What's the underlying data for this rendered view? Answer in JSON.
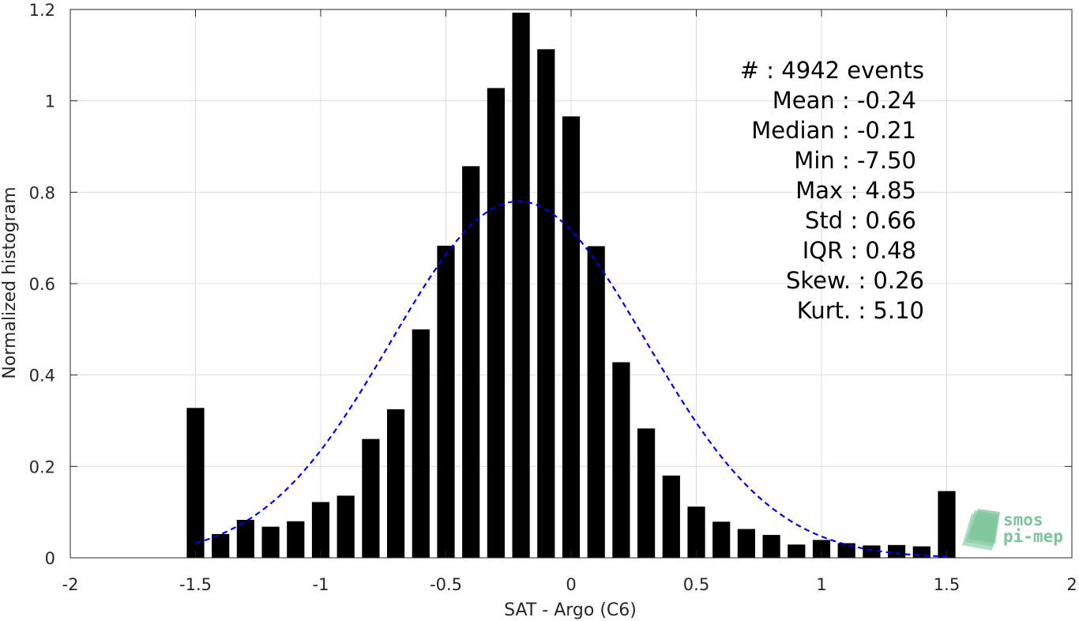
{
  "chart_data": {
    "type": "bar",
    "xlabel": "SAT - Argo (C6)",
    "ylabel": "Normalized histogram",
    "xlim": [
      -2,
      2
    ],
    "ylim": [
      0,
      1.2
    ],
    "xticks": [
      -2,
      -1.5,
      -1,
      -0.5,
      0,
      0.5,
      1,
      1.5,
      2
    ],
    "xtick_labels": [
      "-2",
      "-1.5",
      "-1",
      "-0.5",
      "0",
      "0.5",
      "1",
      "1.5",
      "2"
    ],
    "yticks": [
      0,
      0.2,
      0.4,
      0.6,
      0.8,
      1,
      1.2
    ],
    "ytick_labels": [
      "0",
      "0.2",
      "0.4",
      "0.6",
      "0.8",
      "1",
      "1.2"
    ],
    "grid": true,
    "bar_color": "#000000",
    "bar_width": 0.07,
    "x": [
      -1.5,
      -1.4,
      -1.3,
      -1.2,
      -1.1,
      -1.0,
      -0.9,
      -0.8,
      -0.7,
      -0.6,
      -0.5,
      -0.4,
      -0.3,
      -0.2,
      -0.1,
      0.0,
      0.1,
      0.2,
      0.3,
      0.4,
      0.5,
      0.6,
      0.7,
      0.8,
      0.9,
      1.0,
      1.1,
      1.2,
      1.3,
      1.4,
      1.5
    ],
    "values": [
      0.328,
      0.052,
      0.083,
      0.068,
      0.08,
      0.122,
      0.136,
      0.26,
      0.325,
      0.5,
      0.683,
      0.857,
      1.028,
      1.193,
      1.113,
      0.966,
      0.682,
      0.428,
      0.283,
      0.18,
      0.112,
      0.079,
      0.063,
      0.05,
      0.029,
      0.039,
      0.032,
      0.027,
      0.028,
      0.025,
      0.146
    ],
    "fit_curve": {
      "type": "gaussian",
      "style": "dashed",
      "color": "#0000e6",
      "mean": -0.21,
      "std": 0.51,
      "peak": 0.78,
      "xrange": [
        -1.5,
        1.5
      ]
    },
    "annotations": [
      "#  : 4942 events",
      "Mean : -0.24",
      "Median : -0.21",
      "Min : -7.50",
      "Max : 4.85",
      "Std : 0.66",
      "IQR : 0.48",
      "Skew. : 0.26",
      "Kurt. : 5.10"
    ]
  },
  "logo": {
    "line1": "smos",
    "line2": "pi-mep",
    "color": "#7cc49a"
  }
}
